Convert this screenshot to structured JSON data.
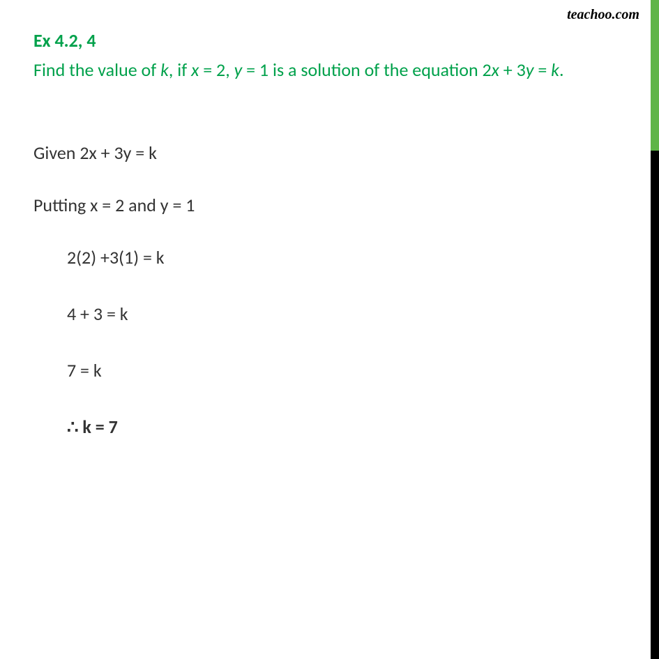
{
  "watermark": "teachoo.com",
  "header": {
    "title": "Ex 4.2, 4"
  },
  "question": {
    "part1": "Find the value of ",
    "k": "k",
    "part2": ", if ",
    "x": "x",
    "part3": " = 2, ",
    "y": "y",
    "part4": " = 1 is a solution of the equation 2",
    "x2": "x",
    "part5": " + 3",
    "y2": "y",
    "part6": " = ",
    "k2": "k",
    "part7": "."
  },
  "solution": {
    "line1": "Given 2x + 3y = k",
    "line2": "Putting x = 2 and y = 1",
    "line3": "2(2) +3(1) = k",
    "line4": "4  + 3 = k",
    "line5": "7 = k",
    "therefore": "∴",
    "line6": " k = 7"
  },
  "colors": {
    "accent_green": "#00a14b",
    "border_green": "#5fb548",
    "border_black": "#000000",
    "text_dark": "#333333",
    "background": "#ffffff"
  }
}
